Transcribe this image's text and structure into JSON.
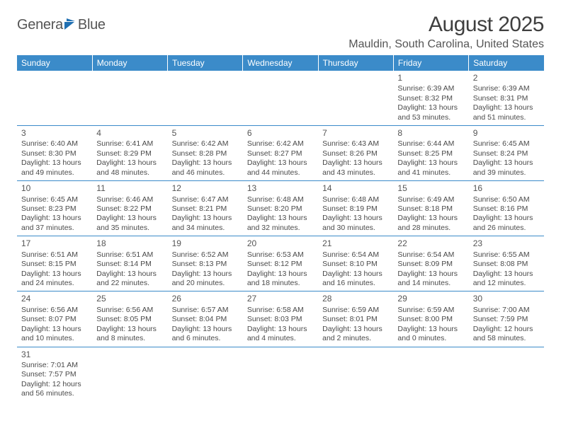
{
  "logo": {
    "text1": "Genera",
    "text2": "Blue"
  },
  "header": {
    "month_title": "August 2025",
    "location": "Mauldin, South Carolina, United States"
  },
  "colors": {
    "header_bg": "#3b8bc9",
    "header_fg": "#ffffff",
    "rule": "#3b8bc9",
    "text": "#4a4a4a",
    "flag": "#1f6fb2"
  },
  "weekdays": [
    "Sunday",
    "Monday",
    "Tuesday",
    "Wednesday",
    "Thursday",
    "Friday",
    "Saturday"
  ],
  "layout": {
    "columns": 7,
    "rows": 6,
    "first_weekday_index": 5,
    "days_in_month": 31
  },
  "days": [
    {
      "n": 1,
      "sr": "6:39 AM",
      "ss": "8:32 PM",
      "dl": "13 hours and 53 minutes."
    },
    {
      "n": 2,
      "sr": "6:39 AM",
      "ss": "8:31 PM",
      "dl": "13 hours and 51 minutes."
    },
    {
      "n": 3,
      "sr": "6:40 AM",
      "ss": "8:30 PM",
      "dl": "13 hours and 49 minutes."
    },
    {
      "n": 4,
      "sr": "6:41 AM",
      "ss": "8:29 PM",
      "dl": "13 hours and 48 minutes."
    },
    {
      "n": 5,
      "sr": "6:42 AM",
      "ss": "8:28 PM",
      "dl": "13 hours and 46 minutes."
    },
    {
      "n": 6,
      "sr": "6:42 AM",
      "ss": "8:27 PM",
      "dl": "13 hours and 44 minutes."
    },
    {
      "n": 7,
      "sr": "6:43 AM",
      "ss": "8:26 PM",
      "dl": "13 hours and 43 minutes."
    },
    {
      "n": 8,
      "sr": "6:44 AM",
      "ss": "8:25 PM",
      "dl": "13 hours and 41 minutes."
    },
    {
      "n": 9,
      "sr": "6:45 AM",
      "ss": "8:24 PM",
      "dl": "13 hours and 39 minutes."
    },
    {
      "n": 10,
      "sr": "6:45 AM",
      "ss": "8:23 PM",
      "dl": "13 hours and 37 minutes."
    },
    {
      "n": 11,
      "sr": "6:46 AM",
      "ss": "8:22 PM",
      "dl": "13 hours and 35 minutes."
    },
    {
      "n": 12,
      "sr": "6:47 AM",
      "ss": "8:21 PM",
      "dl": "13 hours and 34 minutes."
    },
    {
      "n": 13,
      "sr": "6:48 AM",
      "ss": "8:20 PM",
      "dl": "13 hours and 32 minutes."
    },
    {
      "n": 14,
      "sr": "6:48 AM",
      "ss": "8:19 PM",
      "dl": "13 hours and 30 minutes."
    },
    {
      "n": 15,
      "sr": "6:49 AM",
      "ss": "8:18 PM",
      "dl": "13 hours and 28 minutes."
    },
    {
      "n": 16,
      "sr": "6:50 AM",
      "ss": "8:16 PM",
      "dl": "13 hours and 26 minutes."
    },
    {
      "n": 17,
      "sr": "6:51 AM",
      "ss": "8:15 PM",
      "dl": "13 hours and 24 minutes."
    },
    {
      "n": 18,
      "sr": "6:51 AM",
      "ss": "8:14 PM",
      "dl": "13 hours and 22 minutes."
    },
    {
      "n": 19,
      "sr": "6:52 AM",
      "ss": "8:13 PM",
      "dl": "13 hours and 20 minutes."
    },
    {
      "n": 20,
      "sr": "6:53 AM",
      "ss": "8:12 PM",
      "dl": "13 hours and 18 minutes."
    },
    {
      "n": 21,
      "sr": "6:54 AM",
      "ss": "8:10 PM",
      "dl": "13 hours and 16 minutes."
    },
    {
      "n": 22,
      "sr": "6:54 AM",
      "ss": "8:09 PM",
      "dl": "13 hours and 14 minutes."
    },
    {
      "n": 23,
      "sr": "6:55 AM",
      "ss": "8:08 PM",
      "dl": "13 hours and 12 minutes."
    },
    {
      "n": 24,
      "sr": "6:56 AM",
      "ss": "8:07 PM",
      "dl": "13 hours and 10 minutes."
    },
    {
      "n": 25,
      "sr": "6:56 AM",
      "ss": "8:05 PM",
      "dl": "13 hours and 8 minutes."
    },
    {
      "n": 26,
      "sr": "6:57 AM",
      "ss": "8:04 PM",
      "dl": "13 hours and 6 minutes."
    },
    {
      "n": 27,
      "sr": "6:58 AM",
      "ss": "8:03 PM",
      "dl": "13 hours and 4 minutes."
    },
    {
      "n": 28,
      "sr": "6:59 AM",
      "ss": "8:01 PM",
      "dl": "13 hours and 2 minutes."
    },
    {
      "n": 29,
      "sr": "6:59 AM",
      "ss": "8:00 PM",
      "dl": "13 hours and 0 minutes."
    },
    {
      "n": 30,
      "sr": "7:00 AM",
      "ss": "7:59 PM",
      "dl": "12 hours and 58 minutes."
    },
    {
      "n": 31,
      "sr": "7:01 AM",
      "ss": "7:57 PM",
      "dl": "12 hours and 56 minutes."
    }
  ],
  "labels": {
    "sunrise": "Sunrise:",
    "sunset": "Sunset:",
    "daylight": "Daylight:"
  }
}
